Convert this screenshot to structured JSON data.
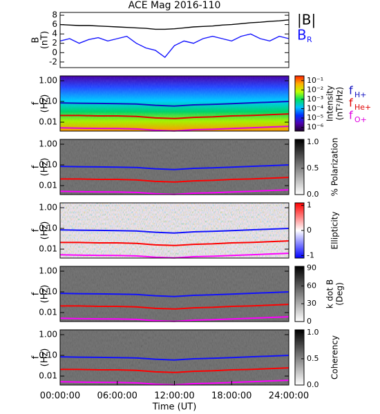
{
  "chart_data": [
    {
      "type": "line",
      "title": "ACE Mag 2016-110",
      "ylabel": "B",
      "ylabel_unit": "(nT)",
      "xlim": [
        0,
        24
      ],
      "ylim": [
        -3.2,
        8.6
      ],
      "yticks": [
        -2,
        0,
        2,
        4,
        6,
        8
      ],
      "x": [
        0,
        1,
        2,
        3,
        4,
        5,
        6,
        7,
        8,
        9,
        10,
        11,
        12,
        13,
        14,
        15,
        16,
        17,
        18,
        19,
        20,
        21,
        22,
        23,
        24
      ],
      "series": [
        {
          "name": "|B|",
          "color": "#000000",
          "values": [
            6.0,
            5.9,
            5.8,
            5.8,
            5.7,
            5.6,
            5.5,
            5.4,
            5.3,
            5.2,
            5.0,
            5.0,
            5.1,
            5.3,
            5.5,
            5.6,
            5.7,
            5.9,
            6.0,
            6.2,
            6.4,
            6.5,
            6.7,
            6.8,
            7.0
          ]
        },
        {
          "name": "B",
          "sub": "R",
          "color": "#1010ff",
          "values": [
            2.5,
            3.0,
            2.0,
            2.8,
            3.2,
            2.5,
            3.0,
            3.5,
            2.0,
            1.0,
            0.5,
            -1.0,
            1.5,
            2.5,
            2.0,
            3.0,
            3.5,
            3.0,
            2.5,
            3.5,
            4.0,
            3.0,
            2.5,
            3.5,
            3.0
          ]
        }
      ]
    },
    {
      "type": "spectrogram",
      "ylabel": "f",
      "ylabel_unit": "(Hz)",
      "log": true,
      "xlim": [
        0,
        24
      ],
      "ylim": [
        0.0037,
        1.71
      ],
      "yticks": [
        {
          "value": 0.01,
          "label": "0.01"
        },
        {
          "value": 0.1,
          "label": "0.10"
        },
        {
          "value": 1,
          "label": "1.00"
        }
      ],
      "colorbar": {
        "label": "Intensity",
        "unit": "(nT²/Hz)",
        "log": true,
        "lim": [
          4e-07,
          0.316
        ],
        "colors": [
          "#200030",
          "#5000b0",
          "#0030ff",
          "#00c0ff",
          "#00e060",
          "#c0ff00",
          "#ffb000",
          "#ff2000"
        ],
        "ticks": [
          {
            "value": 1e-06,
            "label": "10⁻⁶"
          },
          {
            "value": 1e-05,
            "label": "10⁻⁵"
          },
          {
            "value": 0.0001,
            "label": "10⁻⁴"
          },
          {
            "value": 0.001,
            "label": "10⁻³"
          },
          {
            "value": 0.01,
            "label": "10⁻²"
          },
          {
            "value": 0.1,
            "label": "10⁻¹"
          }
        ]
      },
      "x": [
        0,
        2,
        4,
        6,
        8,
        10,
        12,
        14,
        16,
        18,
        20,
        22,
        24
      ],
      "series": [
        {
          "name": "f",
          "sub": "H+",
          "color": "#1010c0",
          "values": [
            0.085,
            0.082,
            0.08,
            0.078,
            0.075,
            0.065,
            0.06,
            0.068,
            0.072,
            0.078,
            0.085,
            0.092,
            0.1
          ]
        },
        {
          "name": "f",
          "sub": "He+",
          "color": "#e00000",
          "values": [
            0.021,
            0.021,
            0.02,
            0.02,
            0.019,
            0.016,
            0.015,
            0.017,
            0.018,
            0.02,
            0.021,
            0.023,
            0.025
          ]
        },
        {
          "name": "f",
          "sub": "O+",
          "color": "#e000e0",
          "values": [
            0.0053,
            0.0051,
            0.005,
            0.0049,
            0.0047,
            0.0041,
            0.0038,
            0.0043,
            0.0045,
            0.0049,
            0.0053,
            0.0058,
            0.0063
          ]
        }
      ]
    },
    {
      "type": "spectrogram",
      "ylabel": "f",
      "ylabel_unit": "(Hz)",
      "log": true,
      "xlim": [
        0,
        24
      ],
      "ylim": [
        0.0037,
        1.71
      ],
      "yticks": [
        {
          "value": 0.01,
          "label": "0.01"
        },
        {
          "value": 0.1,
          "label": "0.10"
        },
        {
          "value": 1,
          "label": "1.00"
        }
      ],
      "colorbar": {
        "label": "% Polarization",
        "lim": [
          0,
          1.05
        ],
        "colors": [
          "#ffffff",
          "#000000"
        ],
        "ticks": [
          {
            "value": 0,
            "label": "0.0"
          },
          0.5,
          {
            "value": 1,
            "label": "1.0"
          }
        ]
      },
      "x": [
        0,
        2,
        4,
        6,
        8,
        10,
        12,
        14,
        16,
        18,
        20,
        22,
        24
      ],
      "series": [
        {
          "color": "#1010ff",
          "values": [
            0.085,
            0.082,
            0.08,
            0.078,
            0.075,
            0.065,
            0.06,
            0.068,
            0.072,
            0.078,
            0.085,
            0.092,
            0.1
          ]
        },
        {
          "color": "#ff0000",
          "values": [
            0.021,
            0.021,
            0.02,
            0.02,
            0.019,
            0.016,
            0.015,
            0.017,
            0.018,
            0.02,
            0.021,
            0.023,
            0.025
          ]
        },
        {
          "color": "#ff00ff",
          "values": [
            0.0053,
            0.0051,
            0.005,
            0.0049,
            0.0047,
            0.0041,
            0.0038,
            0.0043,
            0.0045,
            0.0049,
            0.0053,
            0.0058,
            0.0063
          ]
        }
      ]
    },
    {
      "type": "spectrogram",
      "ylabel": "f",
      "ylabel_unit": "(Hz)",
      "log": true,
      "xlim": [
        0,
        24
      ],
      "ylim": [
        0.0037,
        1.71
      ],
      "yticks": [
        {
          "value": 0.01,
          "label": "0.01"
        },
        {
          "value": 0.1,
          "label": "0.10"
        },
        {
          "value": 1,
          "label": "1.00"
        }
      ],
      "colorbar": {
        "label": "Ellipticity",
        "lim": [
          -1.1,
          1.1
        ],
        "colors": [
          "#0000ff",
          "#ffffff",
          "#ff0000"
        ],
        "ticks": [
          -1,
          0,
          1
        ]
      },
      "x": [
        0,
        2,
        4,
        6,
        8,
        10,
        12,
        14,
        16,
        18,
        20,
        22,
        24
      ],
      "series": [
        {
          "color": "#1010ff",
          "values": [
            0.085,
            0.082,
            0.08,
            0.078,
            0.075,
            0.065,
            0.06,
            0.068,
            0.072,
            0.078,
            0.085,
            0.092,
            0.1
          ]
        },
        {
          "color": "#ff0000",
          "values": [
            0.021,
            0.021,
            0.02,
            0.02,
            0.019,
            0.016,
            0.015,
            0.017,
            0.018,
            0.02,
            0.021,
            0.023,
            0.025
          ]
        },
        {
          "color": "#ff00ff",
          "values": [
            0.0053,
            0.0051,
            0.005,
            0.0049,
            0.0047,
            0.0041,
            0.0038,
            0.0043,
            0.0045,
            0.0049,
            0.0053,
            0.0058,
            0.0063
          ]
        }
      ]
    },
    {
      "type": "spectrogram",
      "ylabel": "f",
      "ylabel_unit": "(Hz)",
      "log": true,
      "xlim": [
        0,
        24
      ],
      "ylim": [
        0.0037,
        1.71
      ],
      "yticks": [
        {
          "value": 0.01,
          "label": "0.01"
        },
        {
          "value": 0.1,
          "label": "0.10"
        },
        {
          "value": 1,
          "label": "1.00"
        }
      ],
      "colorbar": {
        "label": "k dot B",
        "unit": "(Deg)",
        "lim": [
          0,
          93
        ],
        "colors": [
          "#ffffff",
          "#000000"
        ],
        "ticks": [
          0,
          30,
          60,
          90
        ]
      },
      "x": [
        0,
        2,
        4,
        6,
        8,
        10,
        12,
        14,
        16,
        18,
        20,
        22,
        24
      ],
      "series": [
        {
          "color": "#1010ff",
          "values": [
            0.085,
            0.082,
            0.08,
            0.078,
            0.075,
            0.065,
            0.06,
            0.068,
            0.072,
            0.078,
            0.085,
            0.092,
            0.1
          ]
        },
        {
          "color": "#ff0000",
          "values": [
            0.021,
            0.021,
            0.02,
            0.02,
            0.019,
            0.016,
            0.015,
            0.017,
            0.018,
            0.02,
            0.021,
            0.023,
            0.025
          ]
        },
        {
          "color": "#ff00ff",
          "values": [
            0.0053,
            0.0051,
            0.005,
            0.0049,
            0.0047,
            0.0041,
            0.0038,
            0.0043,
            0.0045,
            0.0049,
            0.0053,
            0.0058,
            0.0063
          ]
        }
      ]
    },
    {
      "type": "spectrogram",
      "ylabel": "f",
      "ylabel_unit": "(Hz)",
      "log": true,
      "xlim": [
        0,
        24
      ],
      "ylim": [
        0.0037,
        1.71
      ],
      "yticks": [
        {
          "value": 0.01,
          "label": "0.01"
        },
        {
          "value": 0.1,
          "label": "0.10"
        },
        {
          "value": 1,
          "label": "1.00"
        }
      ],
      "colorbar": {
        "label": "Coherency",
        "lim": [
          0,
          1.05
        ],
        "colors": [
          "#ffffff",
          "#000000"
        ],
        "ticks": [
          {
            "value": 0,
            "label": "0.0"
          },
          0.5,
          {
            "value": 1,
            "label": "1.0"
          }
        ]
      },
      "xlabel": "Time (UT)",
      "xticks": [
        {
          "value": 0,
          "label": "00:00:00"
        },
        {
          "value": 6,
          "label": "06:00:00"
        },
        {
          "value": 12,
          "label": "12:00:00"
        },
        {
          "value": 18,
          "label": "18:00:00"
        },
        {
          "value": 24,
          "label": "24:00:00"
        }
      ],
      "x": [
        0,
        2,
        4,
        6,
        8,
        10,
        12,
        14,
        16,
        18,
        20,
        22,
        24
      ],
      "series": [
        {
          "color": "#1010ff",
          "values": [
            0.085,
            0.082,
            0.08,
            0.078,
            0.075,
            0.065,
            0.06,
            0.068,
            0.072,
            0.078,
            0.085,
            0.092,
            0.1
          ]
        },
        {
          "color": "#ff0000",
          "values": [
            0.021,
            0.021,
            0.02,
            0.02,
            0.019,
            0.016,
            0.015,
            0.017,
            0.018,
            0.02,
            0.021,
            0.023,
            0.025
          ]
        },
        {
          "color": "#ff00ff",
          "values": [
            0.0053,
            0.0051,
            0.005,
            0.0049,
            0.0047,
            0.0041,
            0.0038,
            0.0043,
            0.0045,
            0.0049,
            0.0053,
            0.0058,
            0.0063
          ]
        }
      ]
    }
  ]
}
